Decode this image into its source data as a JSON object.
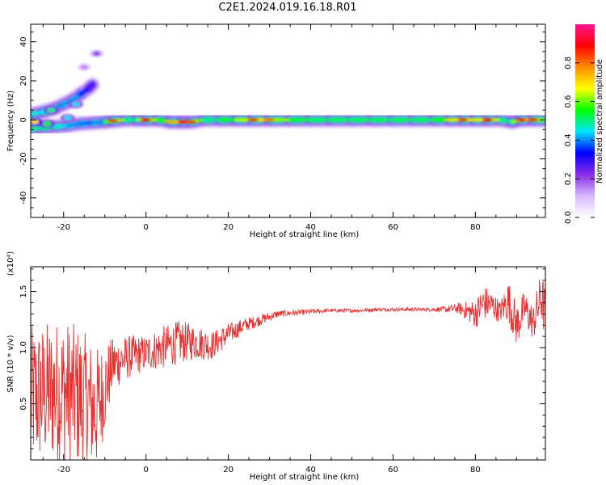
{
  "title": "C2E1.2024.019.16.18.R01",
  "colorbar": {
    "label": "Normalized spectral amplitude",
    "ticks": [
      "0.0",
      "0.2",
      "0.4",
      "0.6",
      "0.8"
    ],
    "tick_values": [
      0.0,
      0.2,
      0.4,
      0.6,
      0.8
    ],
    "range": [
      0,
      1
    ],
    "colors": [
      "#ffffff",
      "#d8b8ff",
      "#8a2be2",
      "#0000ff",
      "#00e5ff",
      "#00ff00",
      "#ffff00",
      "#ff8c00",
      "#ff0000",
      "#ff1493"
    ]
  },
  "chart_data": [
    {
      "type": "heatmap",
      "xlabel": "Height of straight line (km)",
      "ylabel": "Frequency (Hz)",
      "xlim": [
        -28,
        97
      ],
      "ylim": [
        -50,
        49
      ],
      "xticks": [
        -20,
        0,
        20,
        40,
        60,
        80
      ],
      "xtick_labels": [
        "-20",
        "0",
        "20",
        "40",
        "60",
        "80"
      ],
      "yticks": [
        -40,
        -20,
        0,
        20,
        40
      ],
      "ytick_labels": [
        "-40",
        "-20",
        "0",
        "20",
        "40"
      ],
      "ridge": [
        {
          "x": -27.5,
          "f": -4.5,
          "amp": 0.55
        },
        {
          "x": -25,
          "f": -4,
          "amp": 0.6
        },
        {
          "x": -22,
          "f": -3.5,
          "amp": 0.55
        },
        {
          "x": -19,
          "f": -3,
          "amp": 0.5
        },
        {
          "x": -16,
          "f": -2,
          "amp": 0.45
        },
        {
          "x": -13,
          "f": -1.5,
          "amp": 0.45
        },
        {
          "x": -10,
          "f": -1,
          "amp": 0.5
        },
        {
          "x": -8,
          "f": -0.5,
          "amp": 0.85
        },
        {
          "x": -5,
          "f": 0,
          "amp": 0.6
        },
        {
          "x": -2,
          "f": 0,
          "amp": 0.55
        },
        {
          "x": 0,
          "f": 0,
          "amp": 0.9
        },
        {
          "x": 3,
          "f": 0,
          "amp": 0.55
        },
        {
          "x": 6,
          "f": -1,
          "amp": 0.75
        },
        {
          "x": 9,
          "f": -1,
          "amp": 0.9
        },
        {
          "x": 11,
          "f": -1,
          "amp": 0.85
        },
        {
          "x": 14,
          "f": 0,
          "amp": 0.55
        },
        {
          "x": 18,
          "f": 0,
          "amp": 0.6
        },
        {
          "x": 22,
          "f": 0,
          "amp": 0.65
        },
        {
          "x": 26,
          "f": 0,
          "amp": 0.85
        },
        {
          "x": 30,
          "f": 0,
          "amp": 0.8
        },
        {
          "x": 35,
          "f": 0,
          "amp": 0.65
        },
        {
          "x": 40,
          "f": 0,
          "amp": 0.6
        },
        {
          "x": 45,
          "f": 0,
          "amp": 0.6
        },
        {
          "x": 50,
          "f": 0,
          "amp": 0.6
        },
        {
          "x": 55,
          "f": 0,
          "amp": 0.6
        },
        {
          "x": 60,
          "f": 0,
          "amp": 0.6
        },
        {
          "x": 65,
          "f": 0,
          "amp": 0.6
        },
        {
          "x": 70,
          "f": 0,
          "amp": 0.6
        },
        {
          "x": 74,
          "f": 0,
          "amp": 0.7
        },
        {
          "x": 77,
          "f": 0,
          "amp": 0.85
        },
        {
          "x": 80,
          "f": 0,
          "amp": 0.7
        },
        {
          "x": 83,
          "f": 0,
          "amp": 0.9
        },
        {
          "x": 86,
          "f": 0,
          "amp": 0.6
        },
        {
          "x": 89,
          "f": -1,
          "amp": 0.55
        },
        {
          "x": 91,
          "f": 0,
          "amp": 0.9
        },
        {
          "x": 94,
          "f": 0,
          "amp": 0.85
        },
        {
          "x": 96.5,
          "f": 0,
          "amp": 0.6
        }
      ],
      "branch": [
        {
          "x": -27.5,
          "f": 3,
          "amp": 0.5
        },
        {
          "x": -25,
          "f": 4,
          "amp": 0.55
        },
        {
          "x": -22,
          "f": 6,
          "amp": 0.5
        },
        {
          "x": -20,
          "f": 8,
          "amp": 0.45
        },
        {
          "x": -18,
          "f": 10,
          "amp": 0.5
        },
        {
          "x": -16,
          "f": 13,
          "amp": 0.45
        },
        {
          "x": -14,
          "f": 16,
          "amp": 0.35
        },
        {
          "x": -13,
          "f": 18,
          "amp": 0.25
        }
      ],
      "blobs": [
        {
          "x": -27,
          "f": -1,
          "amp": 0.7
        },
        {
          "x": -24,
          "f": -2,
          "amp": 0.55
        },
        {
          "x": -19,
          "f": 1,
          "amp": 0.45
        },
        {
          "x": -23,
          "f": 5,
          "amp": 0.5
        },
        {
          "x": -17,
          "f": 8,
          "amp": 0.45
        },
        {
          "x": -15,
          "f": 27,
          "amp": 0.15
        },
        {
          "x": -12,
          "f": 34,
          "amp": 0.2
        }
      ]
    },
    {
      "type": "line",
      "xlabel": "Height of straight line (km)",
      "ylabel": "SNR (10 * v/v)",
      "multiplier_label": "(x10⁴)",
      "xlim": [
        -28,
        97
      ],
      "ylim": [
        0,
        1.72
      ],
      "xticks": [
        -20,
        0,
        20,
        40,
        60,
        80
      ],
      "xtick_labels": [
        "-20",
        "0",
        "20",
        "40",
        "60",
        "80"
      ],
      "yticks": [
        0.5,
        1.0,
        1.5
      ],
      "ytick_labels": [
        "0.5",
        "1.0",
        "1.5"
      ],
      "series": [
        {
          "color": "#e83030",
          "x": [
            -28,
            -24,
            -20,
            -16,
            -12,
            -8,
            -4,
            0,
            4,
            8,
            12,
            16,
            20,
            24,
            28,
            32,
            36,
            40,
            44,
            48,
            52,
            56,
            60,
            64,
            68,
            72,
            76,
            80,
            82,
            84,
            86,
            88,
            90,
            92,
            94,
            96,
            97
          ],
          "y": [
            0.55,
            0.6,
            0.62,
            0.55,
            0.45,
            0.85,
            0.92,
            0.95,
            1.0,
            1.05,
            1.05,
            1.02,
            1.12,
            1.2,
            1.25,
            1.3,
            1.31,
            1.32,
            1.33,
            1.33,
            1.33,
            1.34,
            1.34,
            1.34,
            1.34,
            1.34,
            1.35,
            1.3,
            1.4,
            1.38,
            1.32,
            1.42,
            1.2,
            1.35,
            1.22,
            1.45,
            1.3
          ],
          "noise": [
            0.4,
            0.4,
            0.4,
            0.4,
            0.35,
            0.15,
            0.12,
            0.1,
            0.12,
            0.12,
            0.1,
            0.08,
            0.06,
            0.04,
            0.03,
            0.02,
            0.015,
            0.015,
            0.01,
            0.01,
            0.01,
            0.01,
            0.01,
            0.01,
            0.01,
            0.015,
            0.03,
            0.08,
            0.1,
            0.08,
            0.06,
            0.12,
            0.12,
            0.1,
            0.1,
            0.15,
            0.15
          ]
        }
      ]
    }
  ]
}
